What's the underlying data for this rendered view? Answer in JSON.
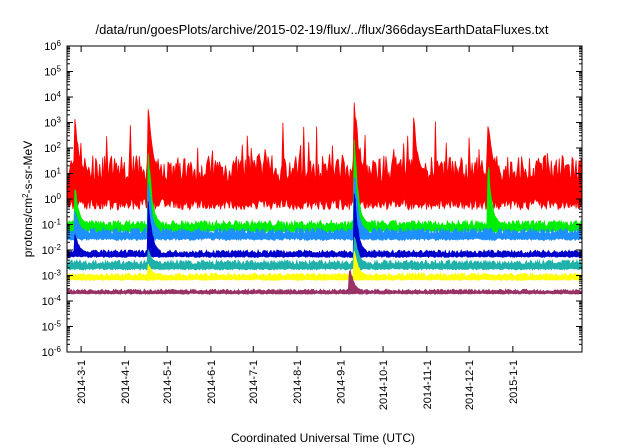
{
  "chart_data": {
    "type": "area",
    "title": "/data/run/goesPlots/archive/2015-02-19/flux/../flux/366daysEarthDataFluxes.txt",
    "xlabel": "Coordinated Universal Time (UTC)",
    "ylabel_base": "protons/cm",
    "ylabel_sup": "2",
    "ylabel_rest": "-s-sr-MeV",
    "x_range": [
      "2014-02-19",
      "2015-02-19"
    ],
    "y_range": [
      1e-06,
      1000000
    ],
    "y_scale": "log",
    "y_ticks": [
      {
        "label": "10",
        "exp": "-6",
        "value": 1e-06
      },
      {
        "label": "10",
        "exp": "-5",
        "value": 1e-05
      },
      {
        "label": "10",
        "exp": "-4",
        "value": 0.0001
      },
      {
        "label": "10",
        "exp": "-3",
        "value": 0.001
      },
      {
        "label": "10",
        "exp": "-2",
        "value": 0.01
      },
      {
        "label": "10",
        "exp": "-1",
        "value": 0.1
      },
      {
        "label": "10",
        "exp": "0",
        "value": 1
      },
      {
        "label": "10",
        "exp": "1",
        "value": 10
      },
      {
        "label": "10",
        "exp": "2",
        "value": 100
      },
      {
        "label": "10",
        "exp": "3",
        "value": 1000
      },
      {
        "label": "10",
        "exp": "4",
        "value": 10000
      },
      {
        "label": "10",
        "exp": "5",
        "value": 100000
      },
      {
        "label": "10",
        "exp": "6",
        "value": 1000000
      }
    ],
    "x_ticks": [
      {
        "label": "2014-3-1",
        "date": "2014-03-01"
      },
      {
        "label": "2014-4-1",
        "date": "2014-04-01"
      },
      {
        "label": "2014-5-1",
        "date": "2014-05-01"
      },
      {
        "label": "2014-6-1",
        "date": "2014-06-01"
      },
      {
        "label": "2014-7-1",
        "date": "2014-07-01"
      },
      {
        "label": "2014-8-1",
        "date": "2014-08-01"
      },
      {
        "label": "2014-9-1",
        "date": "2014-09-01"
      },
      {
        "label": "2014-10-1",
        "date": "2014-10-01"
      },
      {
        "label": "2014-11-1",
        "date": "2014-11-01"
      },
      {
        "label": "2014-12-1",
        "date": "2014-12-01"
      },
      {
        "label": "2015-1-1",
        "date": "2015-01-01"
      }
    ],
    "grid": false,
    "legend": "none",
    "series": [
      {
        "color": "#ff0000",
        "baseline": 10,
        "spread_decades": 1.1,
        "events": [
          {
            "date": "2014-02-25",
            "value": 2000
          },
          {
            "date": "2014-04-18",
            "value": 5000
          },
          {
            "date": "2014-09-11",
            "value": 10000
          },
          {
            "date": "2014-10-23",
            "value": 2000
          },
          {
            "date": "2014-12-15",
            "value": 1000
          }
        ]
      },
      {
        "color": "#00ee00",
        "baseline": 0.1,
        "spread_decades": 0.25,
        "events": [
          {
            "date": "2014-02-25",
            "value": 3
          },
          {
            "date": "2014-04-18",
            "value": 80
          },
          {
            "date": "2014-09-11",
            "value": 300
          },
          {
            "date": "2014-12-15",
            "value": 20
          }
        ]
      },
      {
        "color": "#1e90ff",
        "baseline": 0.05,
        "spread_decades": 0.25,
        "events": [
          {
            "date": "2014-02-25",
            "value": 0.5
          },
          {
            "date": "2014-04-18",
            "value": 5
          },
          {
            "date": "2014-09-11",
            "value": 20
          }
        ]
      },
      {
        "color": "#0000cc",
        "baseline": 0.008,
        "spread_decades": 0.15,
        "events": [
          {
            "date": "2014-02-25",
            "value": 0.05
          },
          {
            "date": "2014-04-18",
            "value": 1
          },
          {
            "date": "2014-09-11",
            "value": 2
          }
        ]
      },
      {
        "color": "#20b2aa",
        "baseline": 0.003,
        "spread_decades": 0.2,
        "events": [
          {
            "date": "2014-04-18",
            "value": 0.01
          },
          {
            "date": "2014-09-11",
            "value": 0.05
          }
        ]
      },
      {
        "color": "#ffff00",
        "baseline": 0.001,
        "spread_decades": 0.15,
        "events": [
          {
            "date": "2014-04-18",
            "value": 0.003
          },
          {
            "date": "2014-09-11",
            "value": 0.01
          }
        ]
      },
      {
        "color": "#993366",
        "baseline": 0.00025,
        "spread_decades": 0.1,
        "events": [
          {
            "date": "2014-09-08",
            "value": 0.002
          }
        ]
      }
    ]
  }
}
